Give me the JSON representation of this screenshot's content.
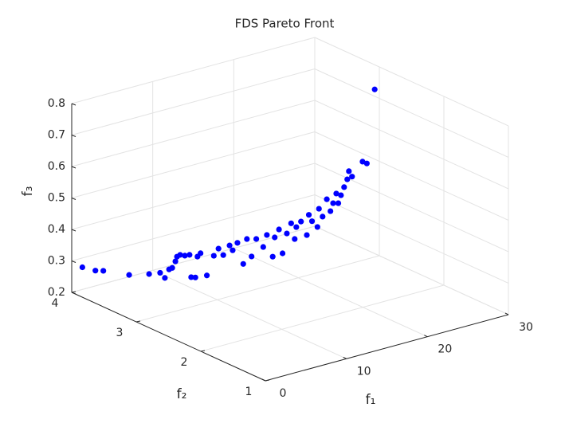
{
  "chart_data": {
    "type": "scatter3d",
    "title": "FDS Pareto Front",
    "xlabel": "f₁",
    "ylabel": "f₂",
    "zlabel": "f₃",
    "color": "#0000ff",
    "grid": true,
    "xlim": [
      0,
      30
    ],
    "xticks": [
      0,
      10,
      20,
      30
    ],
    "ylim": [
      1,
      4
    ],
    "yticks": [
      1,
      2,
      3,
      4
    ],
    "zlim": [
      0.2,
      0.8
    ],
    "zticks": [
      0.2,
      0.3,
      0.4,
      0.5,
      0.6,
      0.7,
      0.8
    ],
    "x": [
      0.28,
      1.25,
      1.83,
      3.66,
      5.09,
      5.89,
      6.24,
      6.52,
      6.75,
      6.98,
      7.1,
      7.33,
      7.67,
      8.01,
      8.13,
      8.41,
      8.59,
      8.81,
      9.27,
      9.73,
      10.07,
      10.42,
      10.88,
      11.1,
      11.45,
      11.85,
      12.14,
      12.48,
      12.82,
      13.28,
      13.57,
      13.97,
      14.14,
      14.43,
      14.71,
      15.0,
      15.29,
      15.57,
      15.69,
      16.03,
      16.43,
      16.6,
      16.83,
      17.18,
      17.29,
      17.58,
      17.86,
      18.15,
      18.32,
      18.55,
      18.72,
      18.89,
      19.12,
      19.35,
      19.47,
      19.7,
      20.44,
      20.73,
      21.3
    ],
    "y": [
      3.87,
      3.79,
      3.74,
      3.57,
      3.44,
      3.37,
      3.34,
      3.31,
      3.29,
      3.27,
      3.26,
      3.24,
      3.21,
      3.18,
      3.17,
      3.14,
      3.13,
      3.11,
      3.07,
      3.02,
      2.99,
      2.96,
      2.92,
      2.9,
      2.87,
      2.83,
      2.81,
      2.78,
      2.75,
      2.7,
      2.68,
      2.64,
      2.63,
      2.6,
      2.58,
      2.55,
      2.52,
      2.5,
      2.49,
      2.46,
      2.42,
      2.41,
      2.39,
      2.35,
      2.34,
      2.32,
      2.29,
      2.27,
      2.25,
      2.23,
      2.22,
      2.2,
      2.18,
      2.16,
      2.15,
      2.13,
      2.06,
      2.03,
      1.98
    ],
    "z": [
      0.29,
      0.28,
      0.28,
      0.27,
      0.275,
      0.28,
      0.264,
      0.292,
      0.297,
      0.318,
      0.333,
      0.339,
      0.337,
      0.34,
      0.269,
      0.269,
      0.335,
      0.346,
      0.276,
      0.34,
      0.363,
      0.343,
      0.374,
      0.359,
      0.383,
      0.317,
      0.396,
      0.341,
      0.397,
      0.373,
      0.411,
      0.343,
      0.404,
      0.43,
      0.354,
      0.418,
      0.451,
      0.401,
      0.439,
      0.457,
      0.415,
      0.479,
      0.459,
      0.442,
      0.5,
      0.475,
      0.531,
      0.493,
      0.519,
      0.55,
      0.519,
      0.545,
      0.571,
      0.596,
      0.622,
      0.605,
      0.654,
      0.649,
      0.885
    ]
  }
}
